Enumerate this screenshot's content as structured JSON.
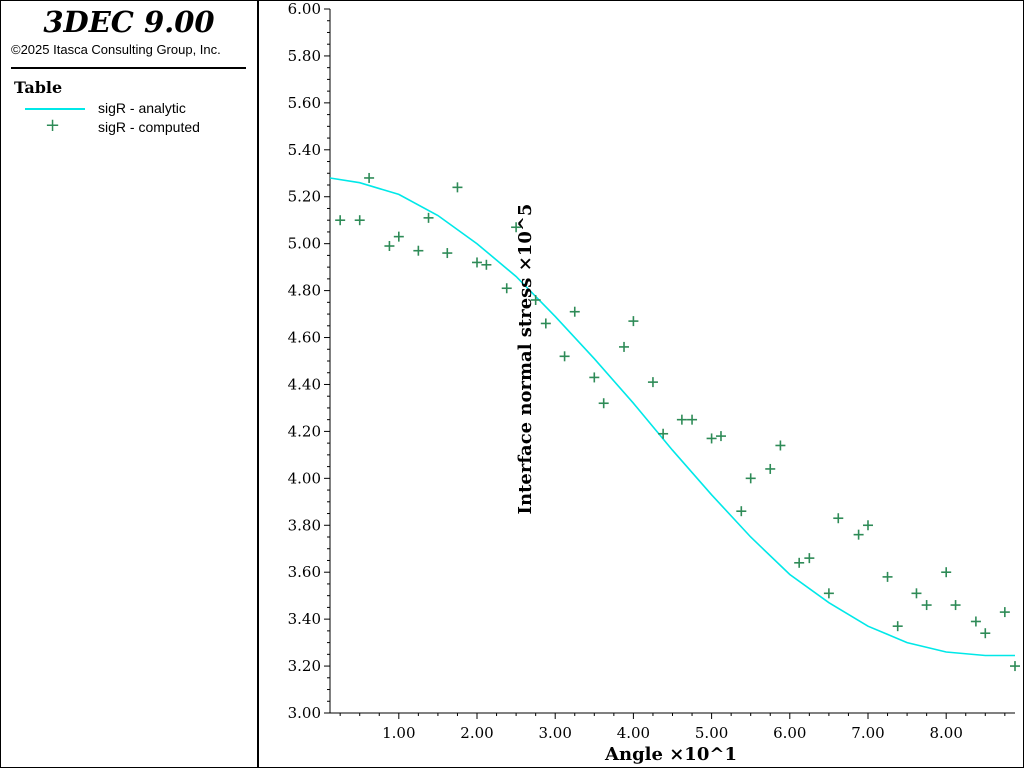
{
  "app": {
    "title": "3DEC 9.00",
    "copyright": "©2025 Itasca Consulting Group, Inc."
  },
  "legend": {
    "title": "Table",
    "items": [
      {
        "label": "sigR - analytic",
        "marker": "line",
        "color": "#00e8e8"
      },
      {
        "label": "sigR - computed",
        "marker": "plus",
        "color": "#2e8b57"
      }
    ]
  },
  "chart_data": {
    "type": "scatter",
    "xlabel": "Angle ×10^1",
    "ylabel": "Interface normal stress ×10^5",
    "xlim": [
      0.12,
      8.88
    ],
    "ylim": [
      3.0,
      6.0
    ],
    "xticks": [
      "1.00",
      "2.00",
      "3.00",
      "4.00",
      "5.00",
      "6.00",
      "7.00",
      "8.00"
    ],
    "yticks": [
      "3.00",
      "3.20",
      "3.40",
      "3.60",
      "3.80",
      "4.00",
      "4.20",
      "4.40",
      "4.60",
      "4.80",
      "5.00",
      "5.20",
      "5.40",
      "5.60",
      "5.80",
      "6.00"
    ],
    "grid": false,
    "legend_position": "left-panel",
    "series": [
      {
        "name": "sigR - analytic",
        "kind": "line",
        "color": "#00e8e8",
        "x": [
          0.12,
          0.5,
          1.0,
          1.5,
          2.0,
          2.5,
          3.0,
          3.5,
          4.0,
          4.5,
          5.0,
          5.5,
          6.0,
          6.5,
          7.0,
          7.5,
          8.0,
          8.5,
          8.88
        ],
        "y": [
          5.28,
          5.26,
          5.21,
          5.12,
          5.0,
          4.86,
          4.69,
          4.51,
          4.32,
          4.12,
          3.93,
          3.75,
          3.59,
          3.47,
          3.37,
          3.3,
          3.26,
          3.245,
          3.245
        ]
      },
      {
        "name": "sigR - computed",
        "kind": "scatter",
        "marker": "plus",
        "color": "#2e8b57",
        "x": [
          0.25,
          0.5,
          0.62,
          0.88,
          1.0,
          1.25,
          1.38,
          1.62,
          1.75,
          2.0,
          2.12,
          2.38,
          2.5,
          2.75,
          2.88,
          3.12,
          3.25,
          3.5,
          3.62,
          3.88,
          4.0,
          4.25,
          4.38,
          4.62,
          4.75,
          5.0,
          5.12,
          5.38,
          5.5,
          5.75,
          5.88,
          6.12,
          6.25,
          6.5,
          6.62,
          6.88,
          7.0,
          7.25,
          7.38,
          7.62,
          7.75,
          8.0,
          8.12,
          8.38,
          8.5,
          8.75,
          8.88
        ],
        "y": [
          5.1,
          5.1,
          5.28,
          4.99,
          5.03,
          4.97,
          5.11,
          4.96,
          5.24,
          4.92,
          4.91,
          4.81,
          5.07,
          4.76,
          4.66,
          4.52,
          4.71,
          4.43,
          4.32,
          4.56,
          4.67,
          4.41,
          4.19,
          4.25,
          4.25,
          4.17,
          4.18,
          3.86,
          4.0,
          4.04,
          4.14,
          3.64,
          3.66,
          3.51,
          3.83,
          3.76,
          3.8,
          3.58,
          3.37,
          3.51,
          3.46,
          3.6,
          3.46,
          3.39,
          3.34,
          3.43,
          3.2
        ]
      }
    ]
  }
}
